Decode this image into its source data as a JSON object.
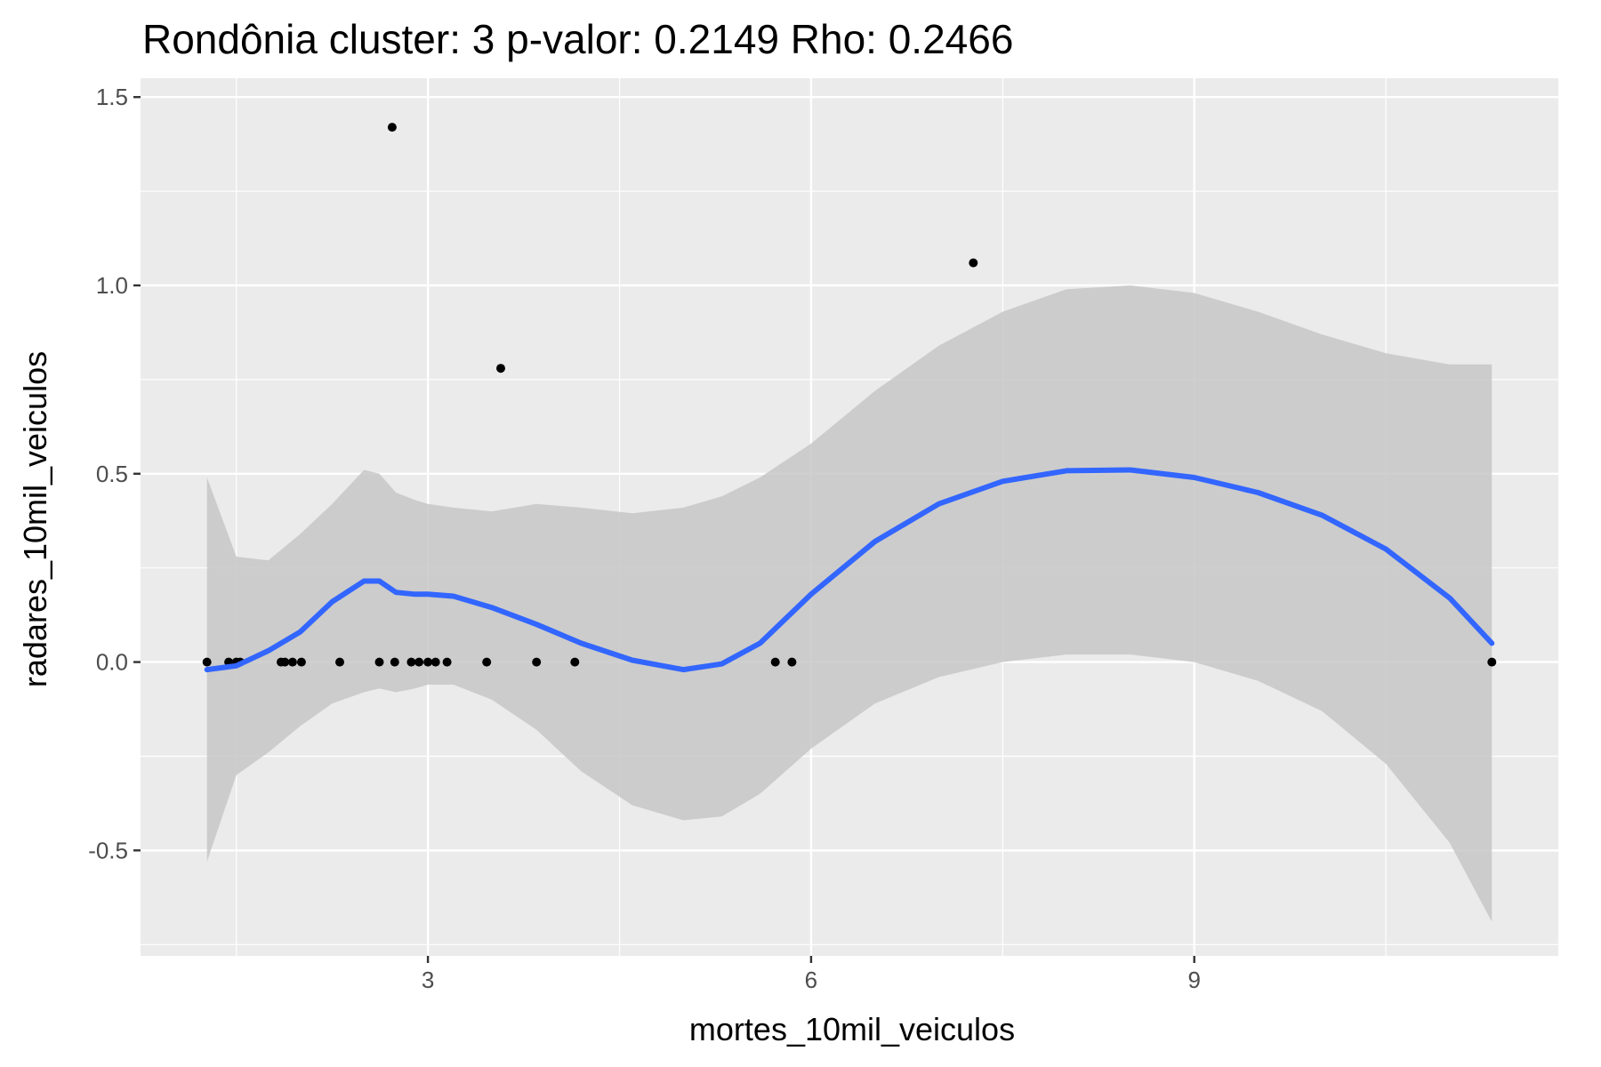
{
  "chart_data": {
    "type": "scatter",
    "title": "Rondônia cluster: 3 p-valor: 0.2149 Rho: 0.2466",
    "xlabel": "mortes_10mil_veiculos",
    "ylabel": "radares_10mil_veiculos",
    "xlim": [
      0.75,
      11.85
    ],
    "ylim": [
      -0.78,
      1.55
    ],
    "x_ticks": [
      3,
      6,
      9
    ],
    "x_tick_labels": [
      "3",
      "6",
      "9"
    ],
    "y_ticks": [
      -0.5,
      0.0,
      0.5,
      1.0,
      1.5
    ],
    "y_tick_labels": [
      "-0.5",
      "0.0",
      "0.5",
      "1.0",
      "1.5"
    ],
    "grid": true,
    "points": {
      "x": [
        1.27,
        1.44,
        1.5,
        1.53,
        1.85,
        1.88,
        1.94,
        2.01,
        2.31,
        2.62,
        2.74,
        2.87,
        2.93,
        3.0,
        3.06,
        3.15,
        3.46,
        3.85,
        4.15,
        5.72,
        5.85,
        2.72,
        3.57,
        7.27,
        11.33
      ],
      "y": [
        0,
        0,
        0,
        0,
        0,
        0,
        0,
        0,
        0,
        0,
        0,
        0,
        0,
        0,
        0,
        0,
        0,
        0,
        0,
        0,
        0,
        1.42,
        0.78,
        1.06,
        0
      ]
    },
    "smooth": {
      "x": [
        1.27,
        1.5,
        1.75,
        2.0,
        2.25,
        2.5,
        2.62,
        2.75,
        2.9,
        3.0,
        3.2,
        3.5,
        3.85,
        4.2,
        4.6,
        5.0,
        5.3,
        5.6,
        6.0,
        6.5,
        7.0,
        7.5,
        8.0,
        8.5,
        9.0,
        9.5,
        10.0,
        10.5,
        11.0,
        11.33
      ],
      "y": [
        -0.02,
        -0.01,
        0.03,
        0.08,
        0.16,
        0.215,
        0.215,
        0.185,
        0.18,
        0.18,
        0.175,
        0.145,
        0.1,
        0.05,
        0.005,
        -0.02,
        -0.005,
        0.05,
        0.18,
        0.32,
        0.42,
        0.48,
        0.508,
        0.51,
        0.49,
        0.45,
        0.39,
        0.3,
        0.17,
        0.05
      ],
      "upper": [
        0.49,
        0.28,
        0.27,
        0.34,
        0.42,
        0.51,
        0.5,
        0.45,
        0.43,
        0.42,
        0.41,
        0.4,
        0.42,
        0.41,
        0.395,
        0.41,
        0.44,
        0.49,
        0.58,
        0.72,
        0.84,
        0.93,
        0.99,
        1.0,
        0.98,
        0.93,
        0.87,
        0.82,
        0.79,
        0.79
      ],
      "lower": [
        -0.53,
        -0.3,
        -0.24,
        -0.17,
        -0.11,
        -0.08,
        -0.07,
        -0.08,
        -0.07,
        -0.06,
        -0.06,
        -0.1,
        -0.18,
        -0.29,
        -0.38,
        -0.42,
        -0.41,
        -0.35,
        -0.23,
        -0.11,
        -0.04,
        0.0,
        0.02,
        0.02,
        0.0,
        -0.05,
        -0.13,
        -0.27,
        -0.48,
        -0.69
      ]
    },
    "colors": {
      "panel": "#ebebeb",
      "grid": "#ffffff",
      "points": "#000000",
      "smooth_line": "#3366ff",
      "ribbon": "#c7c7c7"
    }
  }
}
